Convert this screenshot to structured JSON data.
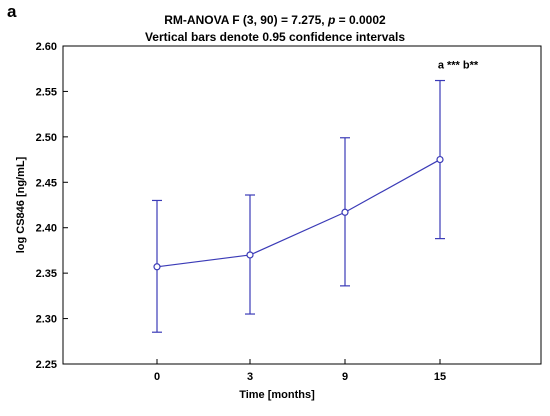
{
  "panel_label": "a",
  "title": {
    "prefix": "RM-ANOVA F (3, 90) = 7.275, ",
    "p_symbol": "p",
    "suffix": " = 0.0002",
    "subtitle": "Vertical bars denote 0.95 confidence intervals"
  },
  "colors": {
    "series": "#3b3bb7",
    "axis": "#000000",
    "frame": "#000000",
    "background": "#ffffff"
  },
  "chart_data": {
    "type": "line",
    "title": "RM-ANOVA F (3, 90) = 7.275, p = 0.0002",
    "subtitle": "Vertical bars denote 0.95 confidence intervals",
    "xlabel": "Time [months]",
    "ylabel": "log CS846 [ng/mL]",
    "categories": [
      "0",
      "3",
      "9",
      "15"
    ],
    "series": [
      {
        "values": [
          2.357,
          2.37,
          2.417,
          2.475
        ],
        "ci_lower": [
          2.285,
          2.305,
          2.336,
          2.388
        ],
        "ci_upper": [
          2.43,
          2.436,
          2.499,
          2.562
        ],
        "marker": "open-circle"
      }
    ],
    "ylim": [
      2.25,
      2.6
    ],
    "yticks": [
      "2.25",
      "2.30",
      "2.35",
      "2.40",
      "2.45",
      "2.50",
      "2.55",
      "2.60"
    ],
    "grid": false,
    "legend": "none",
    "annotations": [
      {
        "category": "15",
        "text": "a *** b**"
      }
    ]
  }
}
